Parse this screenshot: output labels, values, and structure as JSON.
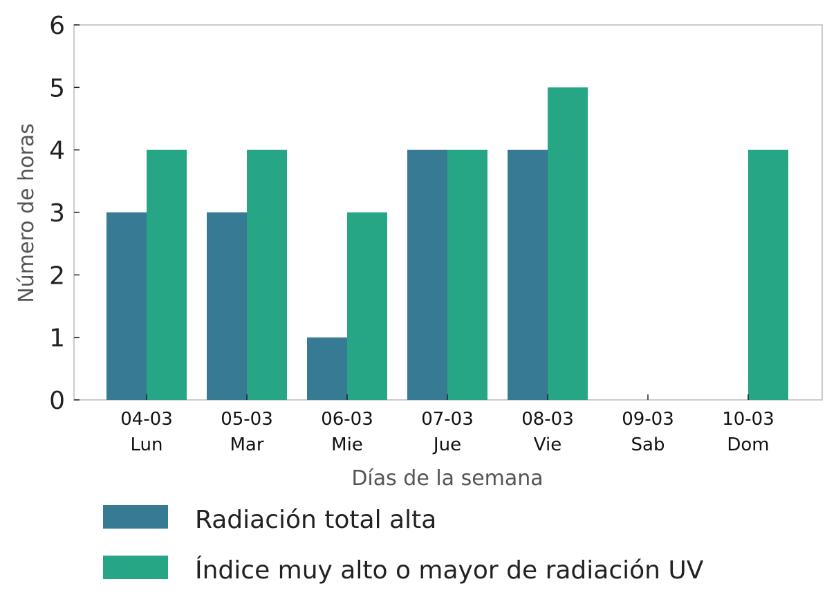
{
  "chart_data": {
    "type": "bar",
    "title": "",
    "xlabel": "Días de la semana",
    "ylabel": "Número de horas",
    "ylim": [
      0,
      6
    ],
    "yticks": [
      "0",
      "1",
      "2",
      "3",
      "4",
      "5",
      "6"
    ],
    "categories": [
      {
        "date": "04-03",
        "day": "Lun"
      },
      {
        "date": "05-03",
        "day": "Mar"
      },
      {
        "date": "06-03",
        "day": "Mie"
      },
      {
        "date": "07-03",
        "day": "Jue"
      },
      {
        "date": "08-03",
        "day": "Vie"
      },
      {
        "date": "09-03",
        "day": "Sab"
      },
      {
        "date": "10-03",
        "day": "Dom"
      }
    ],
    "series": [
      {
        "name": "Radiación total alta",
        "color": "#367a93",
        "values": [
          3,
          3,
          1,
          4,
          4,
          0,
          0
        ]
      },
      {
        "name": "Índice muy alto o mayor de radiación UV",
        "color": "#27a686",
        "values": [
          4,
          4,
          3,
          4,
          5,
          0,
          4
        ]
      }
    ],
    "grid": false,
    "legend_position": "bottom-left"
  }
}
